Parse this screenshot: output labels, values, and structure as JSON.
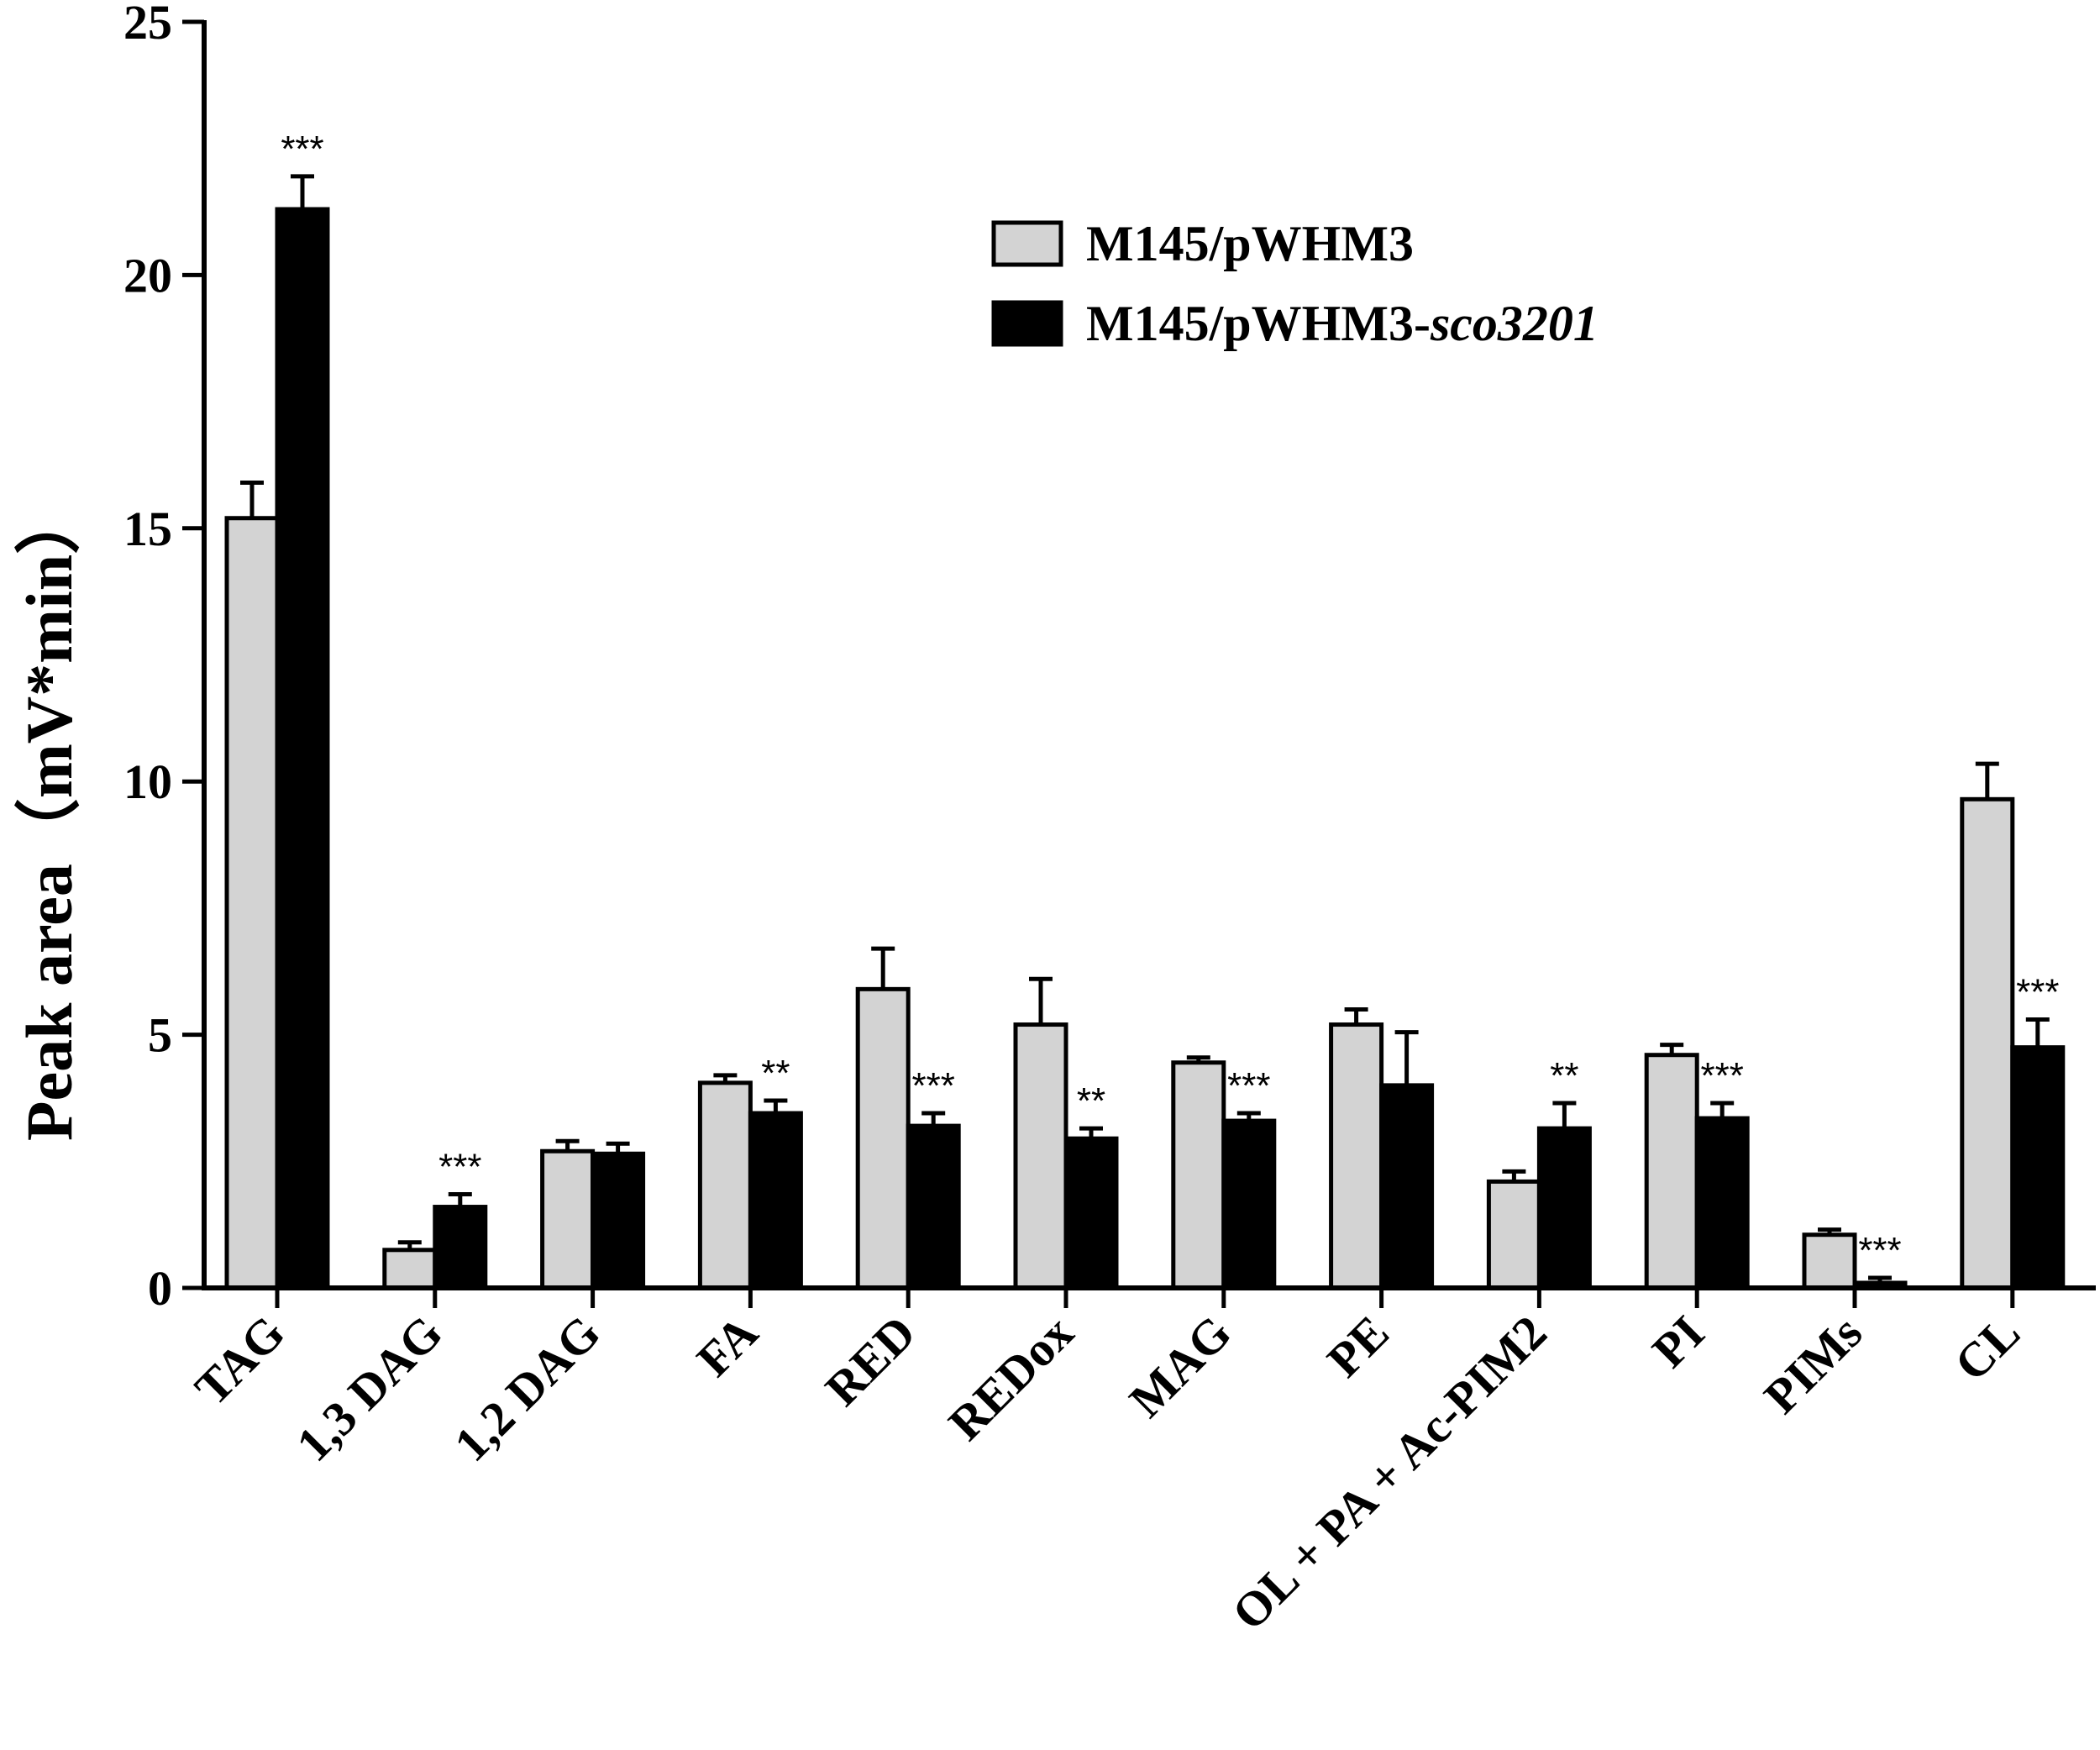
{
  "chart_data": {
    "type": "bar",
    "ylabel": "Peak area（mV*min）",
    "ylim": [
      0,
      25
    ],
    "yticks": [
      0,
      5,
      10,
      15,
      20,
      25
    ],
    "categories": [
      "TAG",
      "1,3 DAG",
      "1,2 DAG",
      "FA",
      "RED",
      "REDox",
      "MAG",
      "PE",
      "OL + PA + Ac-PIM2",
      "PI",
      "PIMs",
      "CL"
    ],
    "series": [
      {
        "name": "M145/pWHM3",
        "color": "#d3d3d3",
        "values": [
          15.2,
          0.75,
          2.7,
          4.05,
          5.9,
          5.2,
          4.45,
          5.2,
          2.1,
          4.6,
          1.05,
          9.65
        ],
        "errors": [
          0.7,
          0.15,
          0.2,
          0.15,
          0.8,
          0.9,
          0.1,
          0.3,
          0.2,
          0.2,
          0.1,
          0.7
        ]
      },
      {
        "name": "M145/pWHM3-sco3201",
        "name_parts": [
          "M145/pWHM3-",
          "sco3201"
        ],
        "color": "#000000",
        "values": [
          21.3,
          1.6,
          2.65,
          3.45,
          3.2,
          2.95,
          3.3,
          4.0,
          3.15,
          3.35,
          0.1,
          4.75
        ],
        "errors": [
          0.65,
          0.25,
          0.2,
          0.25,
          0.25,
          0.2,
          0.15,
          1.05,
          0.5,
          0.3,
          0.1,
          0.55
        ]
      }
    ],
    "significance": [
      "***",
      "***",
      "",
      "**",
      "***",
      "**",
      "***",
      "",
      "**",
      "***",
      "***",
      "***"
    ],
    "legend_position": "top-right"
  }
}
